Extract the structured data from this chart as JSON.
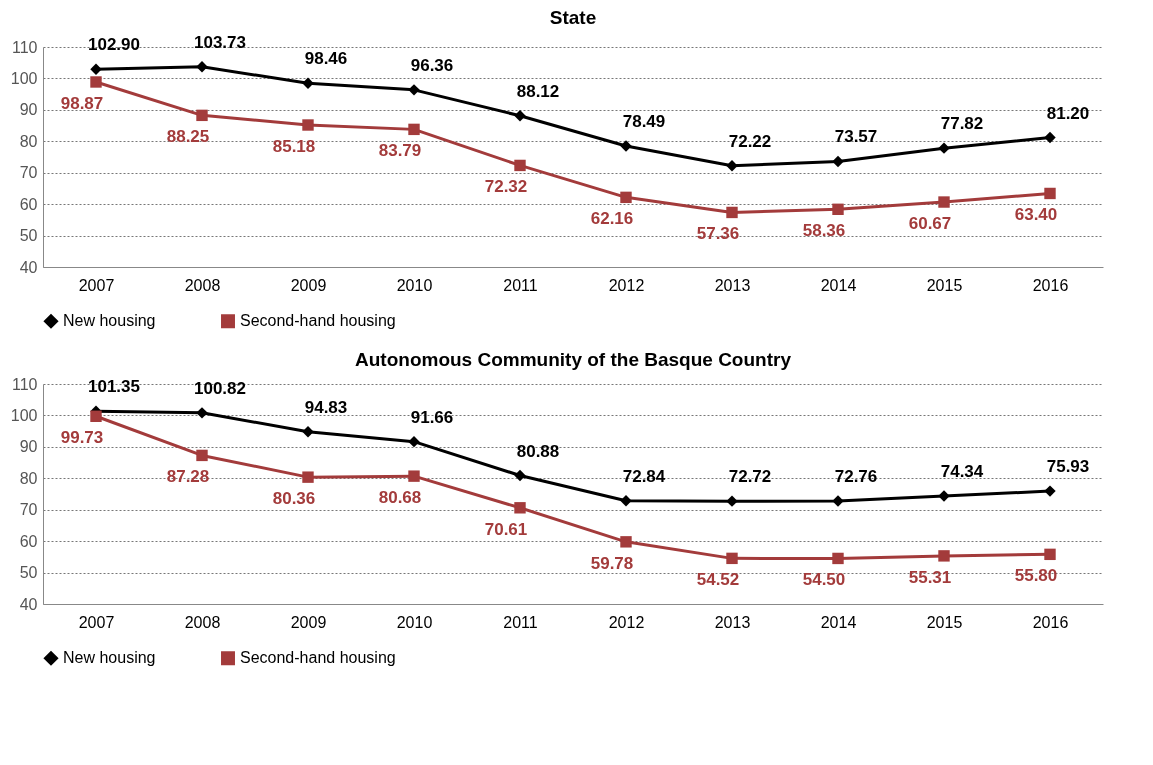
{
  "chart_data": [
    {
      "type": "line",
      "title": "State",
      "categories": [
        "2007",
        "2008",
        "2009",
        "2010",
        "2011",
        "2012",
        "2013",
        "2014",
        "2015",
        "2016"
      ],
      "series": [
        {
          "name": "New housing",
          "color": "#000000",
          "marker": "diamond",
          "values": [
            102.9,
            103.73,
            98.46,
            96.36,
            88.12,
            78.49,
            72.22,
            73.57,
            77.82,
            81.2
          ],
          "value_labels": [
            "102.90",
            "103.73",
            "98.46",
            "96.36",
            "88.12",
            "78.49",
            "72.22",
            "73.57",
            "77.82",
            "81.20"
          ]
        },
        {
          "name": "Second-hand housing",
          "color": "#a33b3b",
          "marker": "square",
          "values": [
            98.87,
            88.25,
            85.18,
            83.79,
            72.32,
            62.16,
            57.36,
            58.36,
            60.67,
            63.4
          ],
          "value_labels": [
            "98.87",
            "88.25",
            "85.18",
            "83.79",
            "72.32",
            "62.16",
            "57.36",
            "58.36",
            "60.67",
            "63.40"
          ]
        }
      ],
      "ylim": [
        40,
        110
      ],
      "yticks": [
        40,
        50,
        60,
        70,
        80,
        90,
        100,
        110
      ],
      "grid": "y",
      "legend": "bottom",
      "line_style": "solid"
    },
    {
      "type": "line",
      "title": "Autonomous Community of the Basque Country",
      "categories": [
        "2007",
        "2008",
        "2009",
        "2010",
        "2011",
        "2012",
        "2013",
        "2014",
        "2015",
        "2016"
      ],
      "series": [
        {
          "name": "New housing",
          "color": "#000000",
          "marker": "diamond",
          "values": [
            101.35,
            100.82,
            94.83,
            91.66,
            80.88,
            72.84,
            72.72,
            72.76,
            74.34,
            75.93
          ],
          "value_labels": [
            "101.35",
            "100.82",
            "94.83",
            "91.66",
            "80.88",
            "72.84",
            "72.72",
            "72.76",
            "74.34",
            "75.93"
          ]
        },
        {
          "name": "Second-hand housing",
          "color": "#a33b3b",
          "marker": "square",
          "values": [
            99.73,
            87.28,
            80.36,
            80.68,
            70.61,
            59.78,
            54.52,
            54.5,
            55.31,
            55.8
          ],
          "value_labels": [
            "99.73",
            "87.28",
            "80.36",
            "80.68",
            "70.61",
            "59.78",
            "54.52",
            "54.50",
            "55.31",
            "55.80"
          ]
        }
      ],
      "ylim": [
        40,
        110
      ],
      "yticks": [
        40,
        50,
        60,
        70,
        80,
        90,
        100,
        110
      ],
      "grid": "y",
      "legend": "bottom",
      "line_style": "solid"
    }
  ]
}
